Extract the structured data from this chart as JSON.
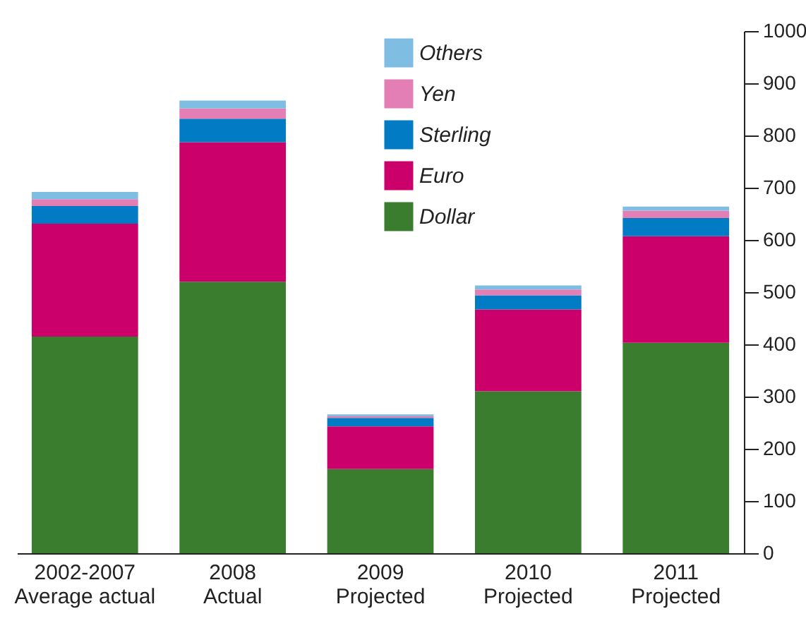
{
  "chart_data": {
    "type": "bar",
    "stacked": true,
    "categories": [
      "2002-2007\nAverage actual",
      "2008\nActual",
      "2009\nProjected",
      "2010\nProjected",
      "2011\nProjected"
    ],
    "series": [
      {
        "name": "Dollar",
        "color": "#3a7d2e",
        "values": [
          415,
          520,
          161,
          310,
          403
        ]
      },
      {
        "name": "Euro",
        "color": "#cc006a",
        "values": [
          216,
          267,
          82,
          157,
          204
        ]
      },
      {
        "name": "Sterling",
        "color": "#007bc4",
        "values": [
          34,
          45,
          16,
          27,
          35
        ]
      },
      {
        "name": "Yen",
        "color": "#e37fb5",
        "values": [
          13,
          20,
          3,
          11,
          14
        ]
      },
      {
        "name": "Others",
        "color": "#80bde3",
        "values": [
          14,
          15,
          4,
          8,
          8
        ]
      }
    ],
    "ylim": [
      0,
      1000
    ],
    "yticks": [
      0,
      100,
      200,
      300,
      400,
      500,
      600,
      700,
      800,
      900,
      1000
    ],
    "grid": false,
    "legend": "top"
  }
}
